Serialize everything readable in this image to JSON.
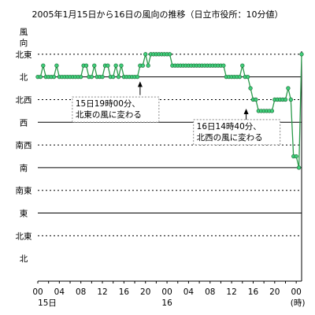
{
  "chart_data": {
    "type": "line",
    "title": "2005年1月15日から16日の風向の推移（日立市役所：10分値）",
    "ylabel": "風向",
    "xunit": "(時)",
    "ylim": [
      0,
      11
    ],
    "yticks": [
      {
        "value": 10,
        "label": "北東"
      },
      {
        "value": 9,
        "label": "北"
      },
      {
        "value": 8,
        "label": "北西"
      },
      {
        "value": 7,
        "label": "西"
      },
      {
        "value": 6,
        "label": "南西"
      },
      {
        "value": 5,
        "label": "南"
      },
      {
        "value": 4,
        "label": "南東"
      },
      {
        "value": 3,
        "label": "東"
      },
      {
        "value": 2,
        "label": "北東"
      },
      {
        "value": 1,
        "label": "北"
      }
    ],
    "xlim": [
      0,
      48
    ],
    "xticks": [
      {
        "value": 0,
        "label": "00",
        "sub": "15日"
      },
      {
        "value": 4,
        "label": "04"
      },
      {
        "value": 8,
        "label": "08"
      },
      {
        "value": 12,
        "label": "12"
      },
      {
        "value": 16,
        "label": "16"
      },
      {
        "value": 20,
        "label": "20"
      },
      {
        "value": 24,
        "label": "00",
        "sub": "16"
      },
      {
        "value": 28,
        "label": "04"
      },
      {
        "value": 32,
        "label": "08"
      },
      {
        "value": 36,
        "label": "12"
      },
      {
        "value": 40,
        "label": "16"
      },
      {
        "value": 44,
        "label": "20"
      },
      {
        "value": 48,
        "label": "00"
      }
    ],
    "solid_lines": [
      9,
      7,
      5,
      3
    ],
    "dashed_lines": [
      10,
      8,
      6,
      4,
      2
    ],
    "series": [
      {
        "color": "#2a9a4a",
        "points": [
          [
            0.0,
            9.0
          ],
          [
            0.5,
            9.0
          ],
          [
            1.0,
            9.5
          ],
          [
            1.5,
            9.0
          ],
          [
            2.0,
            9.0
          ],
          [
            2.5,
            9.0
          ],
          [
            3.0,
            9.0
          ],
          [
            3.5,
            9.5
          ],
          [
            4.0,
            9.0
          ],
          [
            4.5,
            9.0
          ],
          [
            5.0,
            9.0
          ],
          [
            5.5,
            9.0
          ],
          [
            6.0,
            9.0
          ],
          [
            6.5,
            9.0
          ],
          [
            7.0,
            9.0
          ],
          [
            7.5,
            9.0
          ],
          [
            8.0,
            9.0
          ],
          [
            8.5,
            9.5
          ],
          [
            9.0,
            9.5
          ],
          [
            9.5,
            9.0
          ],
          [
            10.0,
            9.0
          ],
          [
            10.5,
            9.5
          ],
          [
            11.0,
            9.0
          ],
          [
            11.5,
            9.0
          ],
          [
            12.0,
            9.0
          ],
          [
            12.5,
            9.5
          ],
          [
            13.0,
            9.5
          ],
          [
            13.5,
            9.0
          ],
          [
            14.0,
            9.0
          ],
          [
            14.5,
            9.5
          ],
          [
            15.0,
            9.0
          ],
          [
            15.5,
            9.5
          ],
          [
            16.0,
            9.0
          ],
          [
            16.5,
            9.0
          ],
          [
            17.0,
            9.0
          ],
          [
            17.5,
            9.0
          ],
          [
            18.0,
            9.0
          ],
          [
            18.5,
            9.0
          ],
          [
            19.0,
            9.5
          ],
          [
            19.5,
            9.5
          ],
          [
            20.0,
            10.0
          ],
          [
            20.5,
            9.5
          ],
          [
            21.0,
            10.0
          ],
          [
            21.5,
            10.0
          ],
          [
            22.0,
            10.0
          ],
          [
            22.5,
            10.0
          ],
          [
            23.0,
            10.0
          ],
          [
            23.5,
            10.0
          ],
          [
            24.0,
            10.0
          ],
          [
            24.5,
            10.0
          ],
          [
            25.0,
            9.5
          ],
          [
            25.5,
            9.5
          ],
          [
            26.0,
            9.5
          ],
          [
            26.5,
            9.5
          ],
          [
            27.0,
            9.5
          ],
          [
            27.5,
            9.5
          ],
          [
            28.0,
            9.5
          ],
          [
            28.5,
            9.5
          ],
          [
            29.0,
            9.5
          ],
          [
            29.5,
            9.5
          ],
          [
            30.0,
            9.5
          ],
          [
            30.5,
            9.5
          ],
          [
            31.0,
            9.5
          ],
          [
            31.5,
            9.5
          ],
          [
            32.0,
            9.5
          ],
          [
            32.5,
            9.5
          ],
          [
            33.0,
            9.5
          ],
          [
            33.5,
            9.5
          ],
          [
            34.0,
            9.5
          ],
          [
            34.5,
            9.5
          ],
          [
            35.0,
            9.0
          ],
          [
            35.5,
            9.0
          ],
          [
            36.0,
            9.0
          ],
          [
            36.5,
            9.0
          ],
          [
            37.0,
            9.0
          ],
          [
            37.5,
            9.0
          ],
          [
            38.0,
            9.5
          ],
          [
            38.5,
            9.0
          ],
          [
            39.0,
            9.0
          ],
          [
            39.5,
            8.5
          ],
          [
            40.0,
            8.0
          ],
          [
            40.5,
            8.0
          ],
          [
            41.0,
            7.5
          ],
          [
            41.5,
            7.5
          ],
          [
            42.0,
            7.5
          ],
          [
            42.5,
            7.5
          ],
          [
            43.0,
            7.5
          ],
          [
            43.5,
            7.5
          ],
          [
            44.0,
            8.0
          ],
          [
            44.5,
            8.0
          ],
          [
            45.0,
            8.0
          ],
          [
            45.5,
            8.0
          ],
          [
            46.0,
            8.0
          ],
          [
            46.5,
            8.5
          ],
          [
            47.0,
            8.0
          ],
          [
            47.5,
            5.5
          ],
          [
            48.0,
            5.5
          ],
          [
            48.5,
            5.0
          ],
          [
            49.0,
            10.0
          ]
        ]
      }
    ],
    "annotations": [
      {
        "lines": [
          "15日19時00分、",
          "北東の風に変わる"
        ],
        "arrow_x": 19.0,
        "arrow_from": 8.2,
        "arrow_to": 8.8,
        "box_x": 7.0,
        "box_y": 7.7
      },
      {
        "lines": [
          "16日14時40分、",
          "北西の風に変わる"
        ],
        "arrow_x": 38.7,
        "arrow_from": 7.0,
        "arrow_to": 7.6,
        "box_x": 29.5,
        "box_y": 6.7
      }
    ]
  }
}
